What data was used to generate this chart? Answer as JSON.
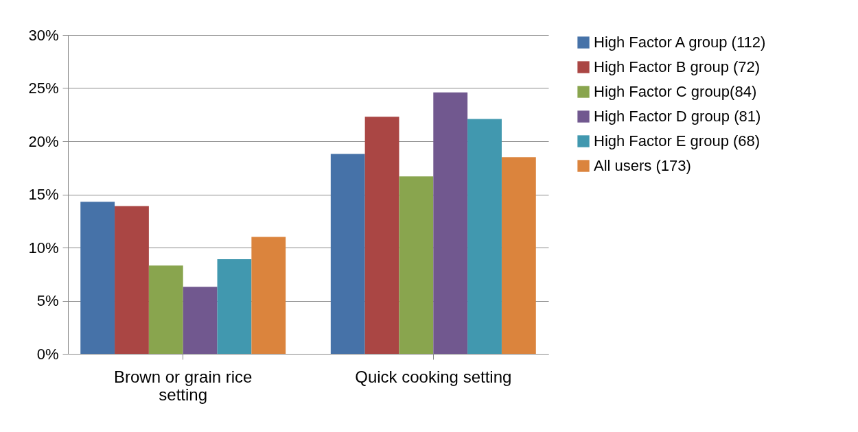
{
  "chart_data": {
    "type": "bar",
    "categories": [
      "Brown or grain rice setting",
      "Quick cooking setting"
    ],
    "series": [
      {
        "name": "High Factor A group (112)",
        "color": "#4672a8",
        "values": [
          14.3,
          18.8
        ]
      },
      {
        "name": "High Factor B group (72)",
        "color": "#aa4644",
        "values": [
          13.9,
          22.3
        ]
      },
      {
        "name": "High Factor C group(84)",
        "color": "#89a54e",
        "values": [
          8.3,
          16.7
        ]
      },
      {
        "name": "High Factor D group (81)",
        "color": "#71588f",
        "values": [
          6.3,
          24.6
        ]
      },
      {
        "name": "High Factor E group (68)",
        "color": "#4198af",
        "values": [
          8.9,
          22.1
        ]
      },
      {
        "name": "All users (173)",
        "color": "#db843d",
        "values": [
          11.0,
          18.5
        ]
      }
    ],
    "ylim": [
      0,
      30
    ],
    "yticks": [
      {
        "value": 0,
        "label": "0%"
      },
      {
        "value": 5,
        "label": "5%"
      },
      {
        "value": 10,
        "label": "10%"
      },
      {
        "value": 15,
        "label": "15%"
      },
      {
        "value": 20,
        "label": "20%"
      },
      {
        "value": 25,
        "label": "25%"
      },
      {
        "value": 30,
        "label": "30%"
      }
    ],
    "grid": "y",
    "legend": "right"
  }
}
